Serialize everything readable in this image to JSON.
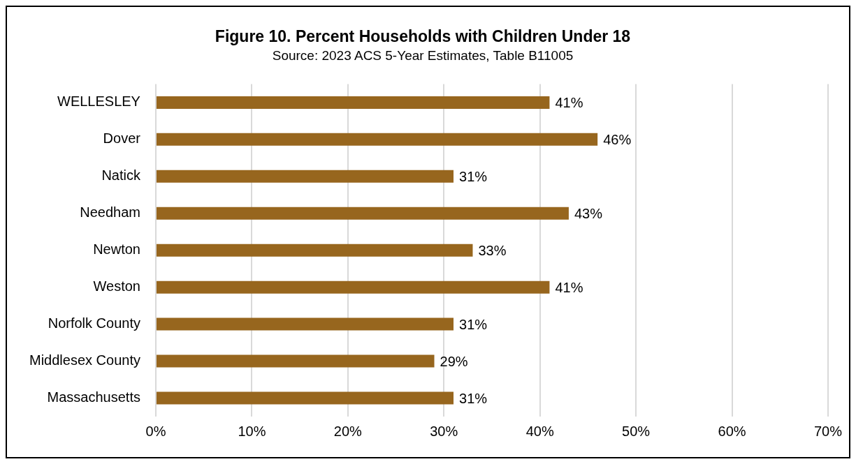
{
  "chart_data": {
    "type": "bar",
    "orientation": "horizontal",
    "title": "Figure 10. Percent Households with Children Under 18",
    "subtitle": "Source: 2023 ACS 5-Year Estimates, Table B11005",
    "categories": [
      "WELLESLEY",
      "Dover",
      "Natick",
      "Needham",
      "Newton",
      "Weston",
      "Norfolk County",
      "Middlesex County",
      "Massachusetts"
    ],
    "values": [
      41,
      46,
      31,
      43,
      33,
      41,
      31,
      29,
      31
    ],
    "color": "#97661e",
    "xlim": [
      0,
      70
    ],
    "xticks": [
      {
        "value": 0,
        "label": "0%"
      },
      {
        "value": 10,
        "label": "10%"
      },
      {
        "value": 20,
        "label": "20%"
      },
      {
        "value": 30,
        "label": "30%"
      },
      {
        "value": 40,
        "label": "40%"
      },
      {
        "value": 50,
        "label": "50%"
      },
      {
        "value": 60,
        "label": "60%"
      },
      {
        "value": 70,
        "label": "70%"
      }
    ],
    "value_labels": [
      "41%",
      "46%",
      "31%",
      "43%",
      "33%",
      "41%",
      "31%",
      "29%",
      "31%"
    ],
    "grid": "x",
    "legend": false
  }
}
